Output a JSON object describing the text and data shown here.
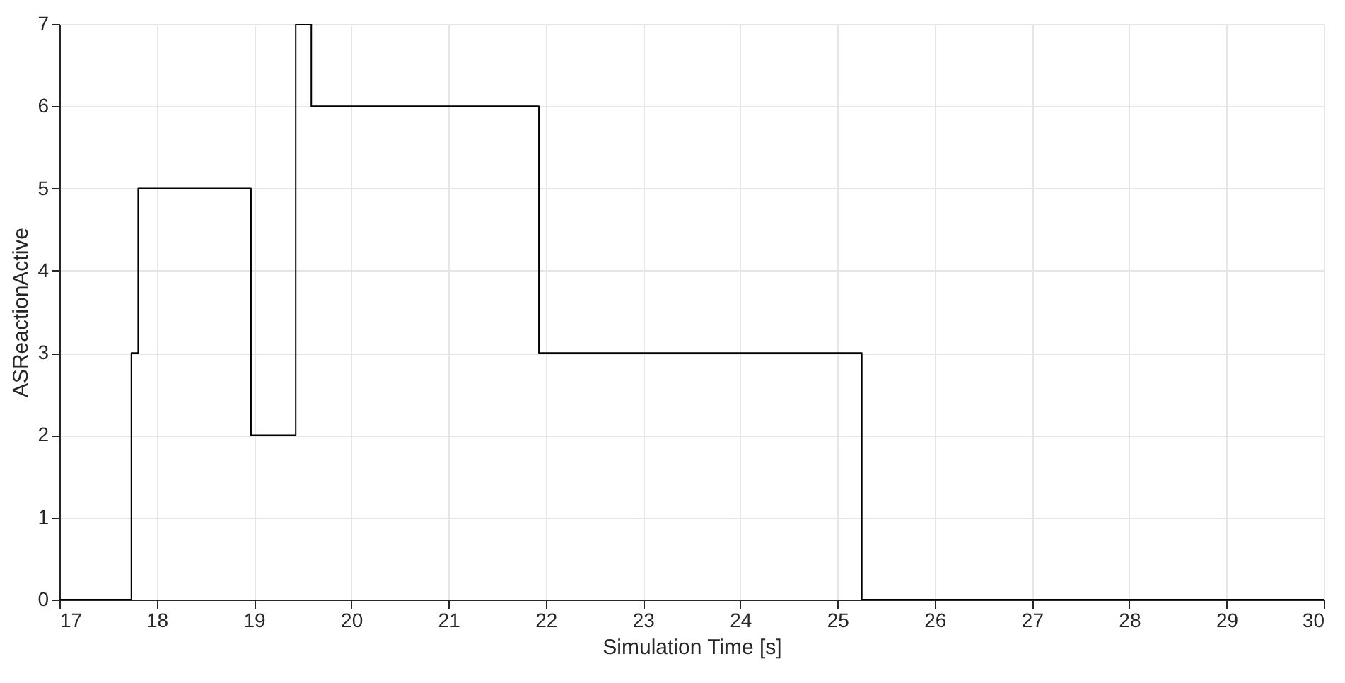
{
  "chart_data": {
    "type": "step",
    "xlabel": "Simulation Time [s]",
    "ylabel": "ASReactionActive",
    "x": [
      17,
      17.74,
      17.81,
      18.97,
      19.43,
      19.59,
      21.93,
      25.25,
      30
    ],
    "series": [
      {
        "color": "#000000",
        "values": [
          0,
          3,
          5,
          2,
          7,
          6,
          3,
          0,
          0
        ]
      }
    ],
    "xlim": [
      17,
      30
    ],
    "xticks": [
      17,
      18,
      19,
      20,
      21,
      22,
      23,
      24,
      25,
      26,
      27,
      28,
      29,
      30
    ],
    "ylim": [
      0,
      7
    ],
    "yticks": [
      0,
      1,
      2,
      3,
      4,
      5,
      6,
      7
    ],
    "grid": true
  }
}
